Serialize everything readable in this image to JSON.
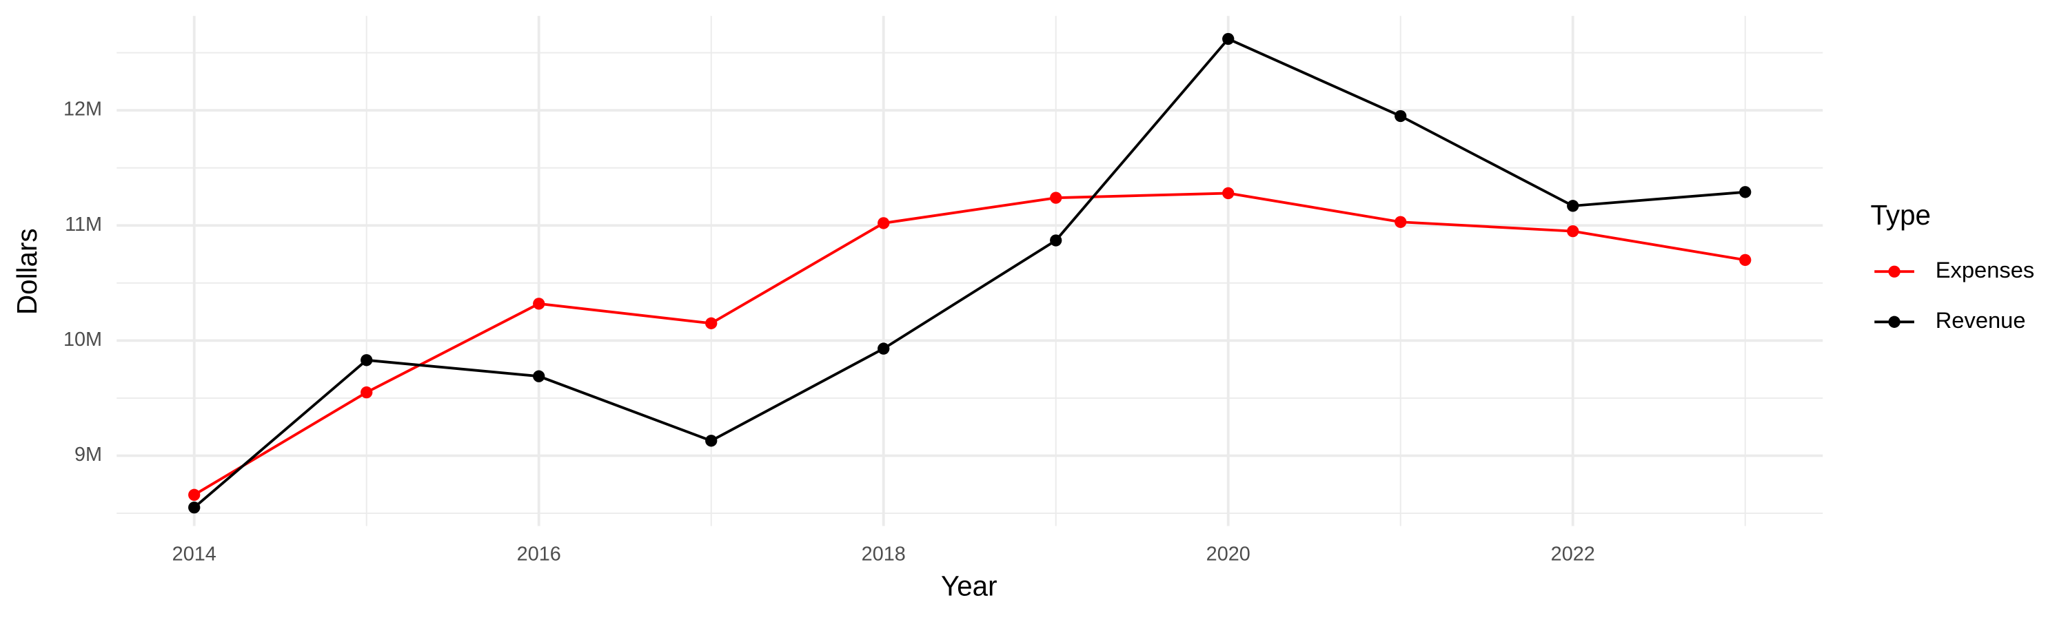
{
  "chart_data": {
    "type": "line",
    "x_label": "Year",
    "y_label": "Dollars",
    "x": [
      2014,
      2015,
      2016,
      2017,
      2018,
      2019,
      2020,
      2021,
      2022,
      2023
    ],
    "series": [
      {
        "name": "Expenses",
        "color": "#ff0000",
        "values": [
          8660000,
          9550000,
          10320000,
          10150000,
          11020000,
          11240000,
          11280000,
          11030000,
          10950000,
          10700000
        ]
      },
      {
        "name": "Revenue",
        "color": "#000000",
        "values": [
          8550000,
          9830000,
          9690000,
          9130000,
          9930000,
          10870000,
          12620000,
          11950000,
          11170000,
          11290000
        ]
      }
    ],
    "xlim": [
      2013.55,
      2023.45
    ],
    "xticks": [
      2014,
      2016,
      2018,
      2020,
      2022
    ],
    "xminorticks": [
      2015,
      2017,
      2019,
      2021,
      2023
    ],
    "ylim": [
      8390000,
      12820000
    ],
    "yticks": [
      {
        "value": 9000000,
        "label": "9M"
      },
      {
        "value": 10000000,
        "label": "10M"
      },
      {
        "value": 11000000,
        "label": "11M"
      },
      {
        "value": 12000000,
        "label": "12M"
      }
    ],
    "yminorticks": [
      8500000,
      9500000,
      10500000,
      11500000,
      12500000
    ],
    "grid": true,
    "legend_title": "Type",
    "legend_position": "right"
  }
}
